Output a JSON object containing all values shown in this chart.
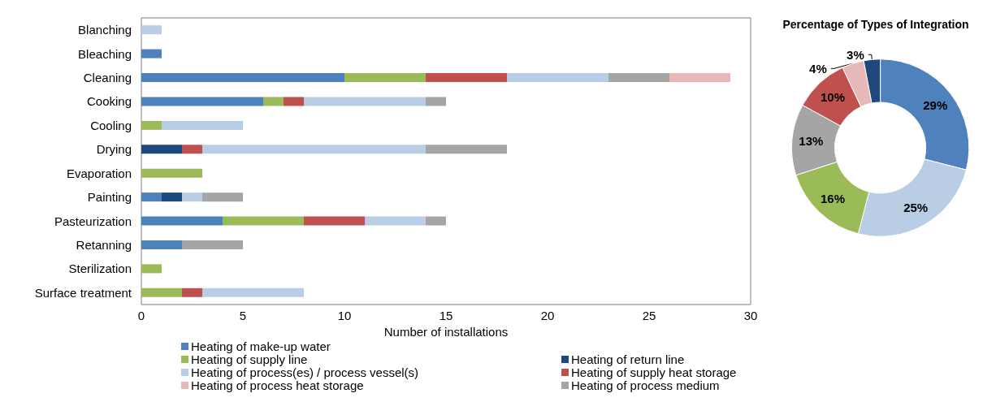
{
  "chart_data": [
    {
      "type": "bar",
      "orientation": "horizontal",
      "stacked": true,
      "xlabel": "Number of installations",
      "categories": [
        "Blanching",
        "Bleaching",
        "Cleaning",
        "Cooking",
        "Cooling",
        "Drying",
        "Evaporation",
        "Painting",
        "Pasteurization",
        "Retanning",
        "Sterilization",
        "Surface treatment"
      ],
      "series": [
        {
          "name": "Heating of make-up water",
          "color": "#4f81bd",
          "values": [
            null,
            1,
            10,
            6,
            null,
            null,
            null,
            1,
            4,
            2,
            null,
            null
          ]
        },
        {
          "name": "Heating of return line",
          "color": "#1f497d",
          "values": [
            null,
            null,
            null,
            null,
            null,
            2,
            null,
            1,
            null,
            null,
            null,
            null
          ]
        },
        {
          "name": "Heating of supply line",
          "color": "#9bbb59",
          "values": [
            null,
            null,
            4,
            1,
            1,
            null,
            3,
            null,
            4,
            null,
            1,
            2
          ]
        },
        {
          "name": "Heating of supply heat storage",
          "color": "#c0504d",
          "values": [
            null,
            null,
            4,
            1,
            null,
            1,
            null,
            null,
            3,
            null,
            null,
            1
          ]
        },
        {
          "name": "Heating of process(es) / process vessel(s)",
          "color": "#b9cde5",
          "values": [
            1,
            null,
            5,
            6,
            4,
            11,
            null,
            1,
            3,
            null,
            null,
            5
          ]
        },
        {
          "name": "Heating of process medium",
          "color": "#a5a5a5",
          "values": [
            null,
            null,
            3,
            1,
            null,
            4,
            null,
            2,
            1,
            3,
            null,
            null
          ]
        },
        {
          "name": "Heating of process heat storage",
          "color": "#e6b9b8",
          "values": [
            null,
            null,
            3,
            null,
            null,
            null,
            null,
            null,
            null,
            null,
            null,
            null
          ]
        }
      ],
      "xlim": [
        0,
        30
      ],
      "xticks": [
        0,
        5,
        10,
        15,
        20,
        25,
        30
      ],
      "legend": "bottom"
    },
    {
      "type": "donut",
      "title": "Percentage of Types of Integration",
      "categories": [
        null,
        null,
        null,
        null,
        null,
        null,
        null
      ],
      "values": [
        29,
        25,
        16,
        13,
        10,
        4,
        3
      ],
      "colors": [
        "#4f81bd",
        "#b9cde5",
        "#9bbb59",
        "#a5a5a5",
        "#c0504d",
        "#e6b9b8",
        "#1f497d"
      ],
      "value_labels": [
        "29%",
        "25%",
        "16%",
        "13%",
        "10%",
        "4%",
        "3%"
      ]
    }
  ]
}
